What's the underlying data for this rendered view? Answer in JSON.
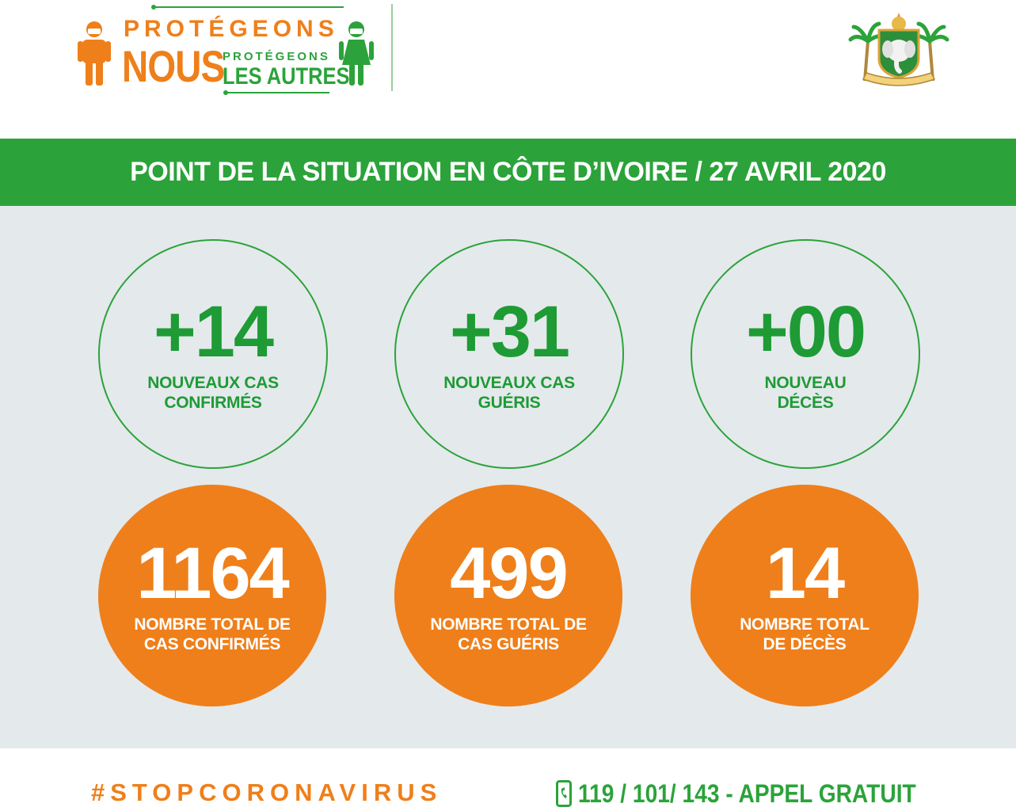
{
  "header": {
    "logo": {
      "line1": "PROTÉGEONS",
      "line2": "NOUS",
      "line3": "PROTÉGEONS",
      "line4": "LES AUTRES"
    },
    "emblem_icon": "coat-of-arms-icon"
  },
  "title": "POINT DE LA SITUATION EN CÔTE D’IVOIRE / 27 AVRIL 2020",
  "daily": [
    {
      "value": "+14",
      "label": "NOUVEAUX CAS\nCONFIRMÉS"
    },
    {
      "value": "+31",
      "label": "NOUVEAUX CAS\nGUÉRIS"
    },
    {
      "value": "+00",
      "label": "NOUVEAU\nDÉCÈS"
    }
  ],
  "totals": [
    {
      "value": "1164",
      "label": "NOMBRE TOTAL DE\nCAS CONFIRMÉS"
    },
    {
      "value": "499",
      "label": "NOMBRE TOTAL DE\nCAS GUÉRIS"
    },
    {
      "value": "14",
      "label": "NOMBRE TOTAL\nDE DÉCÈS"
    }
  ],
  "footer": {
    "hashtag": "#STOPCORONAVIRUS",
    "phone_icon": "phone-icon",
    "hotline": "119 / 101/ 143  -  APPEL GRATUIT"
  },
  "colors": {
    "green": "#2ba33a",
    "orange": "#ef7f1a",
    "panel": "#e4e9ec"
  }
}
